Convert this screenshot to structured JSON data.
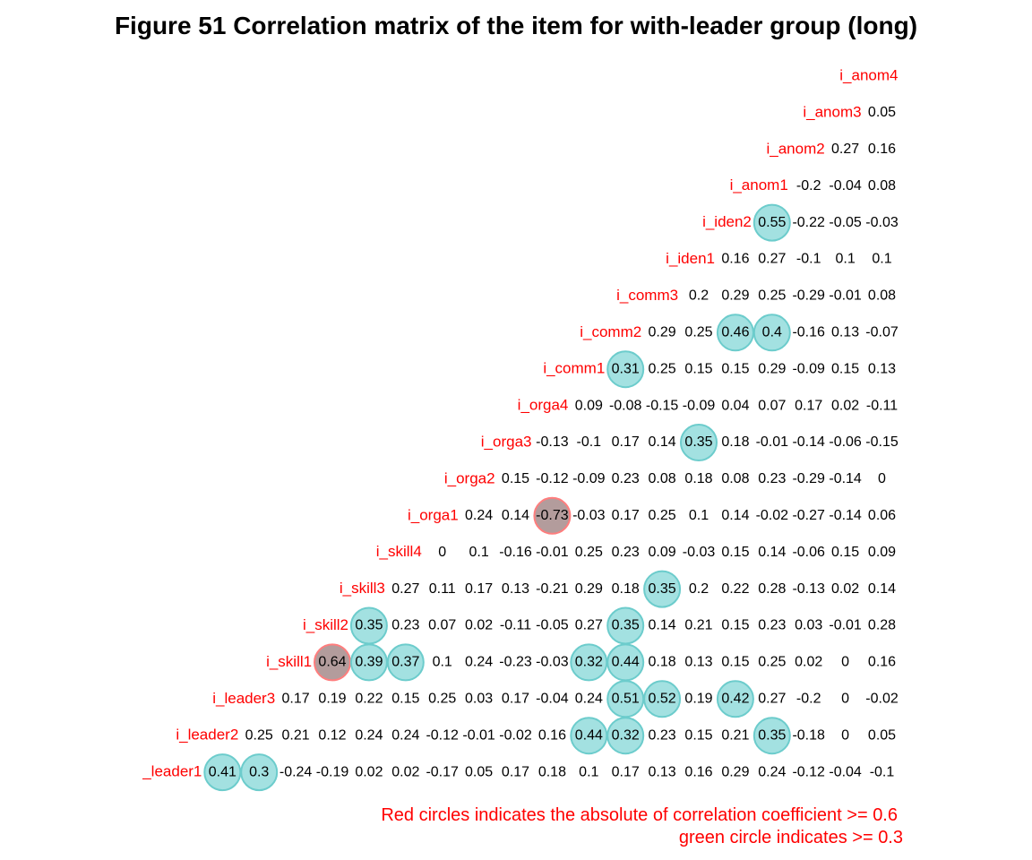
{
  "chart_data": {
    "type": "heatmap",
    "title": "Figure  51 Correlation matrix of the item for with-leader group (long)",
    "colors": {
      "label": "#ff0000",
      "note": "#ff0000",
      "red_circle_fill": "#b39c9c",
      "red_circle_stroke": "#ff7d7d",
      "green_circle_fill": "#a3e1e1",
      "green_circle_stroke": "#6ccccc"
    },
    "thresholds": {
      "red": 0.6,
      "green": 0.3
    },
    "rows": [
      {
        "label": "i_anom4",
        "values": []
      },
      {
        "label": "i_anom3",
        "values": [
          "0.05"
        ]
      },
      {
        "label": "i_anom2",
        "values": [
          "0.27",
          "0.16"
        ]
      },
      {
        "label": "i_anom1",
        "values": [
          "-0.2",
          "-0.04",
          "0.08"
        ]
      },
      {
        "label": "i_iden2",
        "values": [
          "0.55",
          "-0.22",
          "-0.05",
          "-0.03"
        ]
      },
      {
        "label": "i_iden1",
        "values": [
          "0.16",
          "0.27",
          "-0.1",
          "0.1",
          "0.1"
        ]
      },
      {
        "label": "i_comm3",
        "values": [
          "0.2",
          "0.29",
          "0.25",
          "-0.29",
          "-0.01",
          "0.08"
        ]
      },
      {
        "label": "i_comm2",
        "values": [
          "0.29",
          "0.25",
          "0.46",
          "0.4",
          "-0.16",
          "0.13",
          "-0.07"
        ]
      },
      {
        "label": "i_comm1",
        "values": [
          "0.31",
          "0.25",
          "0.15",
          "0.15",
          "0.29",
          "-0.09",
          "0.15",
          "0.13"
        ]
      },
      {
        "label": "i_orga4",
        "values": [
          "0.09",
          "-0.08",
          "-0.15",
          "-0.09",
          "0.04",
          "0.07",
          "0.17",
          "0.02",
          "-0.11"
        ]
      },
      {
        "label": "i_orga3",
        "values": [
          "-0.13",
          "-0.1",
          "0.17",
          "0.14",
          "0.35",
          "0.18",
          "-0.01",
          "-0.14",
          "-0.06",
          "-0.15"
        ]
      },
      {
        "label": "i_orga2",
        "values": [
          "0.15",
          "-0.12",
          "-0.09",
          "0.23",
          "0.08",
          "0.18",
          "0.08",
          "0.23",
          "-0.29",
          "-0.14",
          "0"
        ]
      },
      {
        "label": "i_orga1",
        "values": [
          "0.24",
          "0.14",
          "-0.73",
          "-0.03",
          "0.17",
          "0.25",
          "0.1",
          "0.14",
          "-0.02",
          "-0.27",
          "-0.14",
          "0.06"
        ]
      },
      {
        "label": "i_skill4",
        "values": [
          "0",
          "0.1",
          "-0.16",
          "-0.01",
          "0.25",
          "0.23",
          "0.09",
          "-0.03",
          "0.15",
          "0.14",
          "-0.06",
          "0.15",
          "0.09"
        ]
      },
      {
        "label": "i_skill3",
        "values": [
          "0.27",
          "0.11",
          "0.17",
          "0.13",
          "-0.21",
          "0.29",
          "0.18",
          "0.35",
          "0.2",
          "0.22",
          "0.28",
          "-0.13",
          "0.02",
          "0.14"
        ]
      },
      {
        "label": "i_skill2",
        "values": [
          "0.35",
          "0.23",
          "0.07",
          "0.02",
          "-0.11",
          "-0.05",
          "0.27",
          "0.35",
          "0.14",
          "0.21",
          "0.15",
          "0.23",
          "0.03",
          "-0.01",
          "0.28"
        ]
      },
      {
        "label": "i_skill1",
        "values": [
          "0.64",
          "0.39",
          "0.37",
          "0.1",
          "0.24",
          "-0.23",
          "-0.03",
          "0.32",
          "0.44",
          "0.18",
          "0.13",
          "0.15",
          "0.25",
          "0.02",
          "0",
          "0.16"
        ]
      },
      {
        "label": "i_leader3",
        "values": [
          "0.17",
          "0.19",
          "0.22",
          "0.15",
          "0.25",
          "0.03",
          "0.17",
          "-0.04",
          "0.24",
          "0.51",
          "0.52",
          "0.19",
          "0.42",
          "0.27",
          "-0.2",
          "0",
          "-0.02"
        ]
      },
      {
        "label": "i_leader2",
        "values": [
          "0.25",
          "0.21",
          "0.12",
          "0.24",
          "0.24",
          "-0.12",
          "-0.01",
          "-0.02",
          "0.16",
          "0.44",
          "0.32",
          "0.23",
          "0.15",
          "0.21",
          "0.35",
          "-0.18",
          "0",
          "0.05"
        ]
      },
      {
        "label": "_leader1",
        "values": [
          "0.41",
          "0.3",
          "-0.24",
          "-0.19",
          "0.02",
          "0.02",
          "-0.17",
          "0.05",
          "0.17",
          "0.18",
          "0.1",
          "0.17",
          "0.13",
          "0.16",
          "0.29",
          "0.24",
          "-0.12",
          "-0.04",
          "-0.1"
        ]
      }
    ],
    "notes": [
      "Red circles indicates the absolute of correlation coefficient >= 0.6",
      "green circle indicates >= 0.3"
    ]
  }
}
